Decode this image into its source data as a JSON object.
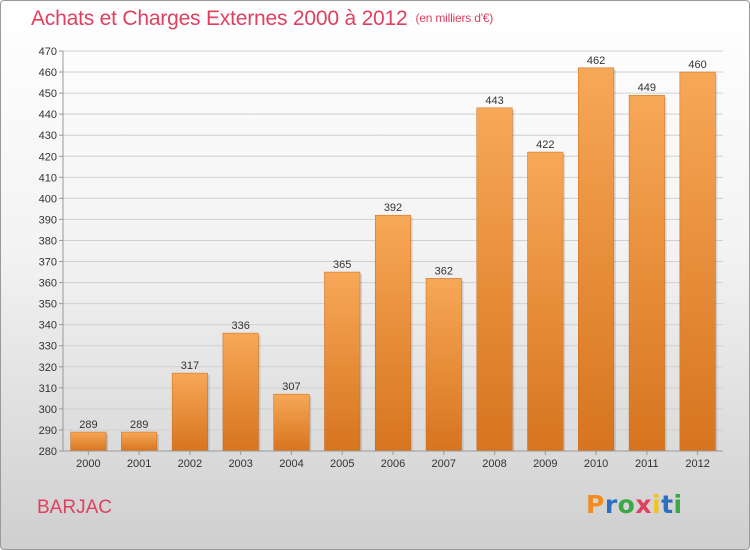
{
  "header": {
    "title": "Achats et Charges Externes 2000 à 2012",
    "unit": "(en milliers d'€)"
  },
  "footer": {
    "town": "BARJAC",
    "logo_letters": [
      "P",
      "r",
      "o",
      "x",
      "i",
      "t",
      "i"
    ],
    "logo_colors": [
      "#f28c1e",
      "#2f6fc0",
      "#3aa845",
      "#e0405f",
      "#f2c21e",
      "#2f6fc0",
      "#3aa845"
    ]
  },
  "colors": {
    "title": "#e0405f",
    "bar_top": "#f7a857",
    "bar_bottom": "#d7741f",
    "grid": "#d0d0d0"
  },
  "chart_data": {
    "type": "bar",
    "title": "Achats et Charges Externes 2000 à 2012",
    "subtitle": "(en milliers d'€)",
    "categories": [
      "2000",
      "2001",
      "2002",
      "2003",
      "2004",
      "2005",
      "2006",
      "2007",
      "2008",
      "2009",
      "2010",
      "2011",
      "2012"
    ],
    "values": [
      289,
      289,
      317,
      336,
      307,
      365,
      392,
      362,
      443,
      422,
      462,
      449,
      460
    ],
    "ylim": [
      280,
      470
    ],
    "ytick_step": 10,
    "grid": "horizontal",
    "data_labels": true
  }
}
